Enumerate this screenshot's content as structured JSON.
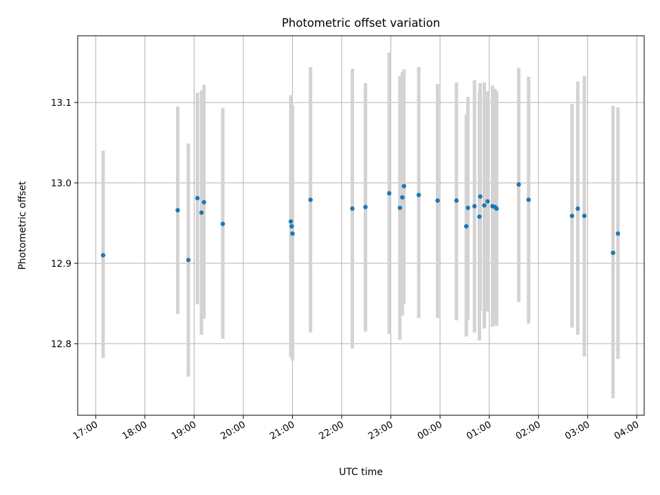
{
  "chart_data": {
    "type": "scatter",
    "title": "Photometric offset variation",
    "xlabel": "UTC time",
    "ylabel": "Photometric offset",
    "grid": true,
    "legend": "none",
    "colors": {
      "point": "#1f77b4",
      "errorbar": "#d3d3d3",
      "grid": "#b0b0b0"
    },
    "xlim": [
      "16:38",
      "04:09"
    ],
    "ylim": [
      12.711,
      13.183
    ],
    "x_ticks": [
      "17:00",
      "18:00",
      "19:00",
      "20:00",
      "21:00",
      "22:00",
      "23:00",
      "00:00",
      "01:00",
      "02:00",
      "03:00",
      "04:00"
    ],
    "y_ticks": [
      12.8,
      12.9,
      13.0,
      13.1
    ],
    "y_tick_labels": [
      "12.8",
      "12.9",
      "13.0",
      "13.1"
    ],
    "points": [
      {
        "x": "17:09",
        "y": 12.91,
        "lo": 12.782,
        "hi": 13.04
      },
      {
        "x": "18:40",
        "y": 12.966,
        "lo": 12.837,
        "hi": 13.095
      },
      {
        "x": "18:53",
        "y": 12.904,
        "lo": 12.759,
        "hi": 13.049
      },
      {
        "x": "19:04",
        "y": 12.981,
        "lo": 12.849,
        "hi": 13.112
      },
      {
        "x": "19:09",
        "y": 12.963,
        "lo": 12.811,
        "hi": 13.115
      },
      {
        "x": "19:12",
        "y": 12.976,
        "lo": 12.831,
        "hi": 13.122
      },
      {
        "x": "19:35",
        "y": 12.949,
        "lo": 12.806,
        "hi": 13.093
      },
      {
        "x": "20:58",
        "y": 12.952,
        "lo": 12.783,
        "hi": 13.109
      },
      {
        "x": "20:59",
        "y": 12.946,
        "lo": 12.786,
        "hi": 13.097
      },
      {
        "x": "21:00",
        "y": 12.937,
        "lo": 12.779,
        "hi": 13.097
      },
      {
        "x": "21:22",
        "y": 12.979,
        "lo": 12.814,
        "hi": 13.144
      },
      {
        "x": "22:13",
        "y": 12.968,
        "lo": 12.794,
        "hi": 13.142
      },
      {
        "x": "22:29",
        "y": 12.97,
        "lo": 12.815,
        "hi": 13.124
      },
      {
        "x": "22:58",
        "y": 12.987,
        "lo": 12.812,
        "hi": 13.162
      },
      {
        "x": "23:11",
        "y": 12.969,
        "lo": 12.805,
        "hi": 13.133
      },
      {
        "x": "23:14",
        "y": 12.982,
        "lo": 12.835,
        "hi": 13.138
      },
      {
        "x": "23:16",
        "y": 12.996,
        "lo": 12.849,
        "hi": 13.141
      },
      {
        "x": "23:34",
        "y": 12.985,
        "lo": 12.832,
        "hi": 13.144
      },
      {
        "x": "23:57",
        "y": 12.978,
        "lo": 12.832,
        "hi": 13.123
      },
      {
        "x": "00:20",
        "y": 12.978,
        "lo": 12.829,
        "hi": 13.125
      },
      {
        "x": "00:32",
        "y": 12.946,
        "lo": 12.809,
        "hi": 13.085
      },
      {
        "x": "00:34",
        "y": 12.969,
        "lo": 12.83,
        "hi": 13.107
      },
      {
        "x": "00:42",
        "y": 12.971,
        "lo": 12.814,
        "hi": 13.128
      },
      {
        "x": "00:48",
        "y": 12.958,
        "lo": 12.804,
        "hi": 13.113
      },
      {
        "x": "00:49",
        "y": 12.983,
        "lo": 12.841,
        "hi": 13.124
      },
      {
        "x": "00:54",
        "y": 12.972,
        "lo": 12.819,
        "hi": 13.125
      },
      {
        "x": "00:58",
        "y": 12.977,
        "lo": 12.84,
        "hi": 13.114
      },
      {
        "x": "01:04",
        "y": 12.971,
        "lo": 12.821,
        "hi": 13.121
      },
      {
        "x": "01:07",
        "y": 12.97,
        "lo": 12.824,
        "hi": 13.117
      },
      {
        "x": "01:09",
        "y": 12.968,
        "lo": 12.822,
        "hi": 13.114
      },
      {
        "x": "01:36",
        "y": 12.998,
        "lo": 12.852,
        "hi": 13.143
      },
      {
        "x": "01:48",
        "y": 12.979,
        "lo": 12.825,
        "hi": 13.132
      },
      {
        "x": "02:41",
        "y": 12.959,
        "lo": 12.82,
        "hi": 13.098
      },
      {
        "x": "02:48",
        "y": 12.968,
        "lo": 12.811,
        "hi": 13.126
      },
      {
        "x": "02:56",
        "y": 12.959,
        "lo": 12.784,
        "hi": 13.133
      },
      {
        "x": "03:31",
        "y": 12.913,
        "lo": 12.732,
        "hi": 13.096
      },
      {
        "x": "03:37",
        "y": 12.937,
        "lo": 12.781,
        "hi": 13.094
      }
    ]
  }
}
